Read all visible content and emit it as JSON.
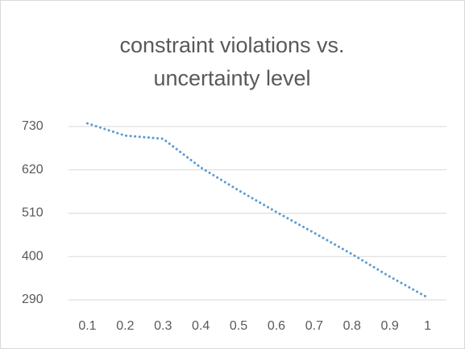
{
  "chart_data": {
    "type": "line",
    "title": "constraint violations vs. uncertainty level",
    "categories": [
      "0.1",
      "0.2",
      "0.3",
      "0.4",
      "0.5",
      "0.6",
      "0.7",
      "0.8",
      "0.9",
      "1"
    ],
    "values": [
      738,
      707,
      699,
      626,
      568,
      513,
      460,
      406,
      349,
      296
    ],
    "color": "#5b9bd5",
    "line_style": "dotted",
    "ylim": [
      290,
      730
    ],
    "yticks": [
      290,
      400,
      510,
      620,
      730
    ],
    "grid": true
  }
}
